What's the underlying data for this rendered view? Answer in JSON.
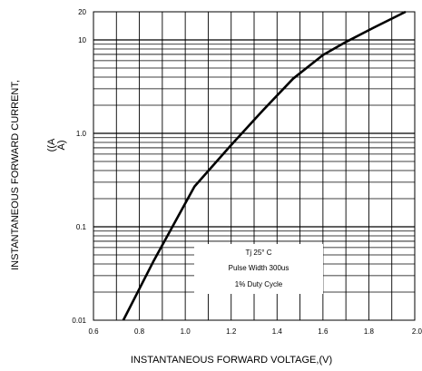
{
  "chart_data": {
    "type": "line",
    "title": "",
    "xlabel": "INSTANTANEOUS FORWARD VOLTAGE,(V)",
    "ylabel": "INSTANTANEOUS FORWARD CURRENT,",
    "ylabel_unit_line1": "((A",
    "ylabel_unit_line2": "A)",
    "x_scale": "linear",
    "y_scale": "log",
    "xlim": [
      0.6,
      2.0
    ],
    "ylim": [
      0.01,
      20
    ],
    "x_ticks": [
      "0.6",
      "0.8",
      "1.0",
      "1.2",
      "1.4",
      "1.6",
      "1.8",
      "2.0"
    ],
    "x_tick_values": [
      0.6,
      0.8,
      1.0,
      1.2,
      1.4,
      1.6,
      1.8,
      2.0
    ],
    "y_ticks": [
      "0.01",
      "0.1",
      "1.0",
      "10",
      "20"
    ],
    "y_tick_values": [
      0.01,
      0.1,
      1.0,
      10,
      20
    ],
    "grid": true,
    "legend": "none",
    "series": [
      {
        "x": [
          0.73,
          0.86,
          1.04,
          1.2,
          1.34,
          1.47,
          1.6,
          1.7,
          1.82,
          1.96
        ],
        "y": [
          0.01,
          0.042,
          0.27,
          0.75,
          1.78,
          3.85,
          6.9,
          9.5,
          13.5,
          20
        ]
      }
    ],
    "annotations": {
      "line1": "Tj   25° C",
      "line2": "Pulse Width  300us",
      "line3": "1% Duty Cycle"
    }
  }
}
